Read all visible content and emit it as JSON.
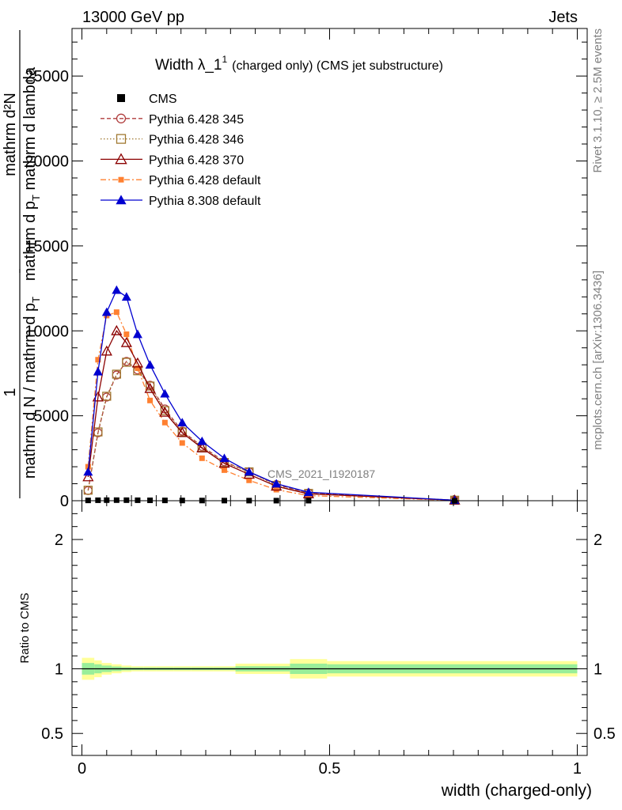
{
  "header": {
    "left": "13000 GeV pp",
    "right": "Jets"
  },
  "side_labels": {
    "rivet": "Rivet 3.1.10, ≥ 2.5M events",
    "mcplots": "mcplots.cern.ch [arXiv:1306.3436]"
  },
  "chart_data": [
    {
      "type": "line",
      "title_main": "Width λ_1",
      "title_sup": "1",
      "title_rest": "(charged only) (CMS jet substructure)",
      "watermark": "CMS_2021_I1920187",
      "ylabel_top": {
        "numerator": "mathrm d²N",
        "denominator_a": "mathrm d p",
        "denominator_sub": "T",
        "denominator_b": " mathrm d lambda"
      },
      "ylabel_bottom": {
        "numerator": "1",
        "denominator_a": "mathrm d N / mathrm d p",
        "denominator_sub": "T"
      },
      "ylim": [
        0,
        27800
      ],
      "yticks": [
        0,
        5000,
        10000,
        15000,
        20000,
        25000
      ],
      "ytick_labels": [
        "0",
        "5000",
        "10000",
        "15000",
        "20000",
        "25000"
      ],
      "xlim": [
        -0.02,
        1.02
      ],
      "x": [
        0.0125,
        0.0325,
        0.05,
        0.07,
        0.09,
        0.1125,
        0.1375,
        0.1675,
        0.2025,
        0.2425,
        0.2875,
        0.3375,
        0.3925,
        0.4575,
        0.7525
      ],
      "legend_position": "top-left",
      "series": [
        {
          "name": "CMS",
          "color": "#000000",
          "marker": "square",
          "line": "none",
          "values": [
            18,
            28,
            33,
            34,
            32,
            28,
            23,
            18,
            14,
            11,
            8,
            6,
            4,
            3,
            1
          ]
        },
        {
          "name": "Pythia 6.428 345",
          "color": "#b03c3c",
          "marker": "circle-open",
          "line": "dashed",
          "values": [
            600,
            4000,
            6100,
            7400,
            8200,
            7700,
            6800,
            5400,
            4100,
            3200,
            2300,
            1700,
            950,
            450,
            30
          ]
        },
        {
          "name": "Pythia 6.428 346",
          "color": "#a07830",
          "marker": "square-open",
          "line": "dotted",
          "values": [
            620,
            4050,
            6150,
            7450,
            8150,
            7650,
            6750,
            5300,
            4050,
            3150,
            2250,
            1700,
            900,
            430,
            30
          ]
        },
        {
          "name": "Pythia 6.428 370",
          "color": "#8b0000",
          "marker": "triangle-open",
          "line": "solid",
          "values": [
            1400,
            6100,
            8800,
            10000,
            9300,
            8100,
            6600,
            5200,
            4000,
            3100,
            2200,
            1550,
            850,
            400,
            30
          ]
        },
        {
          "name": "Pythia 6.428 default",
          "color": "#ff8030",
          "marker": "square",
          "line": "dashdot",
          "values": [
            2000,
            8300,
            10900,
            11100,
            9800,
            7800,
            5900,
            4600,
            3400,
            2500,
            1800,
            1200,
            650,
            300,
            20
          ]
        },
        {
          "name": "Pythia 8.308 default",
          "color": "#0000d0",
          "marker": "triangle",
          "line": "solid",
          "values": [
            1700,
            7600,
            11100,
            12400,
            12000,
            9800,
            8000,
            6300,
            4600,
            3500,
            2500,
            1700,
            1000,
            500,
            30
          ]
        }
      ]
    },
    {
      "type": "area",
      "ylabel": "Ratio to CMS",
      "xlabel": "width (charged-only)",
      "ylim": [
        0.33,
        2.3
      ],
      "yticks": [
        0.5,
        1,
        2
      ],
      "ytick_labels": [
        "0.5",
        "1",
        "2"
      ],
      "xticks": [
        0,
        0.5,
        1
      ],
      "xtick_labels": [
        "0",
        "0.5",
        "1"
      ],
      "reference": 1,
      "band_edges": [
        0,
        0.025,
        0.04,
        0.06,
        0.08,
        0.1,
        0.125,
        0.15,
        0.185,
        0.22,
        0.265,
        0.31,
        0.365,
        0.42,
        0.495,
        1.0
      ],
      "yellow_half_width": [
        0.085,
        0.065,
        0.045,
        0.035,
        0.025,
        0.02,
        0.02,
        0.02,
        0.02,
        0.02,
        0.02,
        0.04,
        0.04,
        0.075,
        0.06
      ],
      "green_half_width": [
        0.045,
        0.035,
        0.025,
        0.018,
        0.012,
        0.01,
        0.01,
        0.01,
        0.01,
        0.01,
        0.01,
        0.02,
        0.02,
        0.04,
        0.035
      ],
      "colors": {
        "yellow": "#ffff99",
        "green": "#99ee99"
      }
    }
  ]
}
